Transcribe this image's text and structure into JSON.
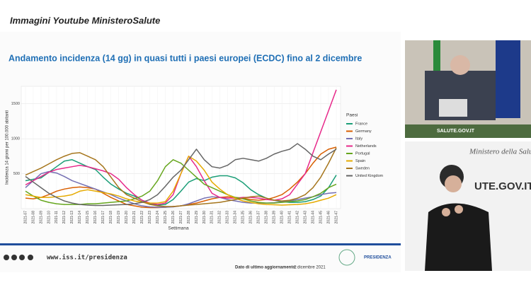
{
  "overlay": {
    "caption": "Immagini Youtube MinisteroSalute"
  },
  "chart_data": {
    "type": "line",
    "title": "Andamento incidenza (14 gg) in quasi tutti i paesi europei (ECDC) fino al 2 dicembre",
    "y_label": "Incidenza 14 giorni per 100.000 abitanti",
    "x_label": "Settimana",
    "legend_title": "Paesi",
    "legend_position": "right",
    "grid": true,
    "ylim": [
      0,
      1750
    ],
    "yticks": [
      500,
      1000,
      1500
    ],
    "categories": [
      "2021-07",
      "2021-08",
      "2021-09",
      "2021-10",
      "2021-11",
      "2021-12",
      "2021-13",
      "2021-14",
      "2021-15",
      "2021-16",
      "2021-17",
      "2021-18",
      "2021-19",
      "2021-20",
      "2021-21",
      "2021-22",
      "2021-23",
      "2021-24",
      "2021-25",
      "2021-26",
      "2021-27",
      "2021-28",
      "2021-29",
      "2021-30",
      "2021-31",
      "2021-32",
      "2021-33",
      "2021-34",
      "2021-35",
      "2021-36",
      "2021-37",
      "2021-38",
      "2021-39",
      "2021-40",
      "2021-41",
      "2021-42",
      "2021-43",
      "2021-44",
      "2021-45",
      "2021-46",
      "2021-47"
    ],
    "series": [
      {
        "name": "France",
        "color": "#1b9e77",
        "values": [
          400,
          420,
          440,
          520,
          600,
          680,
          700,
          650,
          600,
          560,
          450,
          350,
          280,
          220,
          180,
          120,
          70,
          50,
          60,
          130,
          250,
          380,
          430,
          400,
          450,
          470,
          470,
          440,
          370,
          270,
          200,
          150,
          120,
          100,
          90,
          90,
          100,
          130,
          180,
          300,
          480
        ]
      },
      {
        "name": "Germany",
        "color": "#d95f02",
        "values": [
          150,
          140,
          160,
          200,
          250,
          280,
          300,
          310,
          300,
          280,
          220,
          160,
          110,
          60,
          40,
          20,
          15,
          15,
          20,
          30,
          40,
          60,
          80,
          110,
          140,
          160,
          170,
          160,
          150,
          130,
          120,
          130,
          160,
          200,
          280,
          380,
          500,
          650,
          780,
          850,
          880
        ]
      },
      {
        "name": "Italy",
        "color": "#7570b3",
        "values": [
          300,
          400,
          500,
          530,
          510,
          460,
          400,
          360,
          320,
          280,
          240,
          200,
          150,
          110,
          70,
          40,
          25,
          20,
          20,
          25,
          40,
          70,
          110,
          150,
          170,
          160,
          130,
          110,
          90,
          80,
          80,
          80,
          85,
          95,
          110,
          130,
          150,
          170,
          200,
          220,
          230
        ]
      },
      {
        "name": "Netherlands",
        "color": "#e7298a",
        "values": [
          340,
          400,
          460,
          520,
          560,
          580,
          600,
          620,
          600,
          570,
          540,
          500,
          420,
          300,
          200,
          120,
          80,
          60,
          80,
          200,
          500,
          750,
          600,
          400,
          220,
          160,
          150,
          150,
          160,
          160,
          150,
          130,
          120,
          140,
          200,
          350,
          500,
          800,
          1100,
          1400,
          1700
        ]
      },
      {
        "name": "Portugal",
        "color": "#66a61e",
        "values": [
          250,
          180,
          120,
          90,
          70,
          60,
          60,
          60,
          70,
          70,
          80,
          90,
          100,
          110,
          140,
          180,
          250,
          400,
          600,
          700,
          650,
          550,
          450,
          350,
          300,
          250,
          200,
          160,
          140,
          110,
          90,
          80,
          80,
          90,
          100,
          110,
          130,
          170,
          220,
          300,
          350
        ]
      },
      {
        "name": "Spain",
        "color": "#e6ab02",
        "values": [
          200,
          180,
          160,
          160,
          170,
          180,
          200,
          250,
          270,
          250,
          230,
          210,
          180,
          140,
          110,
          90,
          80,
          80,
          100,
          250,
          500,
          750,
          680,
          550,
          380,
          280,
          200,
          150,
          110,
          90,
          70,
          60,
          55,
          50,
          55,
          60,
          70,
          90,
          120,
          150,
          200
        ]
      },
      {
        "name": "Sweden",
        "color": "#a6761d",
        "values": [
          480,
          530,
          580,
          640,
          700,
          750,
          790,
          800,
          750,
          700,
          600,
          450,
          300,
          200,
          150,
          100,
          60,
          40,
          30,
          30,
          40,
          50,
          60,
          70,
          80,
          90,
          110,
          130,
          150,
          170,
          180,
          150,
          120,
          110,
          120,
          150,
          200,
          300,
          450,
          650,
          870
        ]
      },
      {
        "name": "United Kingdom",
        "color": "#666666",
        "values": [
          460,
          380,
          300,
          220,
          160,
          110,
          80,
          60,
          50,
          45,
          45,
          50,
          55,
          60,
          70,
          90,
          130,
          200,
          320,
          450,
          550,
          700,
          850,
          700,
          600,
          580,
          620,
          700,
          720,
          700,
          680,
          720,
          780,
          820,
          850,
          930,
          850,
          750,
          700,
          780,
          850
        ]
      }
    ]
  },
  "footer": {
    "url": "www.iss.it/presidenza",
    "update_label": "Dato di ultimo aggiornamento:",
    "update_date": "2 dicembre 2021",
    "logo_text": "PRESIDENZA"
  },
  "video": {
    "top_banner": "SALUTE.GOV.IT",
    "bottom_heading": "Ministero della Salute",
    "bottom_wall": "UTE.GOV.IT"
  }
}
